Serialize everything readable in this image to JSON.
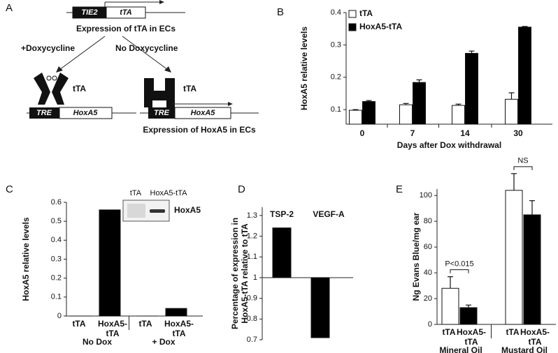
{
  "panel_labels": [
    "A",
    "B",
    "C",
    "D",
    "E"
  ],
  "diagram": {
    "construct": {
      "promoter": "TIE2",
      "gene": "tTA"
    },
    "caption_top": "Expression of tTA in ECs",
    "branch_left": "+Doxycycline",
    "branch_right": "No Doxycycline",
    "left": {
      "protein": "tTA",
      "element": "TRE",
      "gene": "HoxA5"
    },
    "right": {
      "protein": "tTA",
      "element": "TRE",
      "gene": "HoxA5"
    },
    "caption_bottom": "Expression of HoxA5 in ECs"
  },
  "chart_data": [
    {
      "type": "bar",
      "ylabel": "HoxA5 relative levels",
      "xlabel": "Days after Dox withdrawal",
      "categories": [
        "0",
        "7",
        "14",
        "30"
      ],
      "series": [
        {
          "name": "tTA",
          "color": "#ffffff",
          "values": [
            0.098,
            0.115,
            0.113,
            0.132
          ],
          "errors": [
            0.002,
            0.004,
            0.004,
            0.02
          ]
        },
        {
          "name": "HoxA5-tTA",
          "color": "#000000",
          "values": [
            0.125,
            0.184,
            0.274,
            0.355
          ],
          "errors": [
            0.003,
            0.008,
            0.007,
            0.002
          ]
        }
      ],
      "ylim": [
        0.055,
        0.4
      ],
      "yticks": [
        0.1,
        0.2,
        0.3,
        0.4
      ],
      "legend": "upper left"
    },
    {
      "type": "bar",
      "ylabel": "HoxA5 relative levels",
      "categories": [
        "No Dox",
        "+ Dox"
      ],
      "series": [
        {
          "name": "tTA",
          "color": "#000000",
          "values": [
            0,
            0
          ]
        },
        {
          "name": "HoxA5-\ntTA",
          "color": "#000000",
          "values": [
            0.56,
            0.04
          ]
        }
      ],
      "ylim": [
        0,
        0.6
      ],
      "yticks": [
        0,
        0.1,
        0.2,
        0.3,
        0.4,
        0.5,
        0.6
      ],
      "series_labels_below": true,
      "inset": {
        "lanes": [
          "tTA",
          "HoxA5-tTA"
        ],
        "label": "HoxA5"
      }
    },
    {
      "type": "bar",
      "ylabel": "Percentage of expression in\nHoxA5-tTA relative to tTA",
      "categories": [
        "TSP-2",
        "VEGF-A"
      ],
      "values": [
        1.24,
        0.71
      ],
      "color": "#000000",
      "baseline": 1,
      "ylim": [
        0.7,
        1.34
      ],
      "yticks": [
        0.7,
        0.8,
        0.9,
        1,
        1.1,
        1.2,
        1.3
      ]
    },
    {
      "type": "bar",
      "ylabel": "Ng Evans Blue/mg ear",
      "categories": [
        "Mineral Oil",
        "Mustard Oil"
      ],
      "series": [
        {
          "name": "tTA",
          "color": "#ffffff",
          "values": [
            28,
            104
          ],
          "errors": [
            9,
            13
          ]
        },
        {
          "name": "HoxA5-\ntTA",
          "color": "#000000",
          "values": [
            13,
            85
          ],
          "errors": [
            2,
            11
          ]
        }
      ],
      "ylim": [
        0,
        105
      ],
      "yticks": [
        0,
        20,
        40,
        60,
        80,
        100
      ],
      "series_labels_below": true,
      "annotations": [
        "P<0.015",
        "NS"
      ]
    }
  ]
}
